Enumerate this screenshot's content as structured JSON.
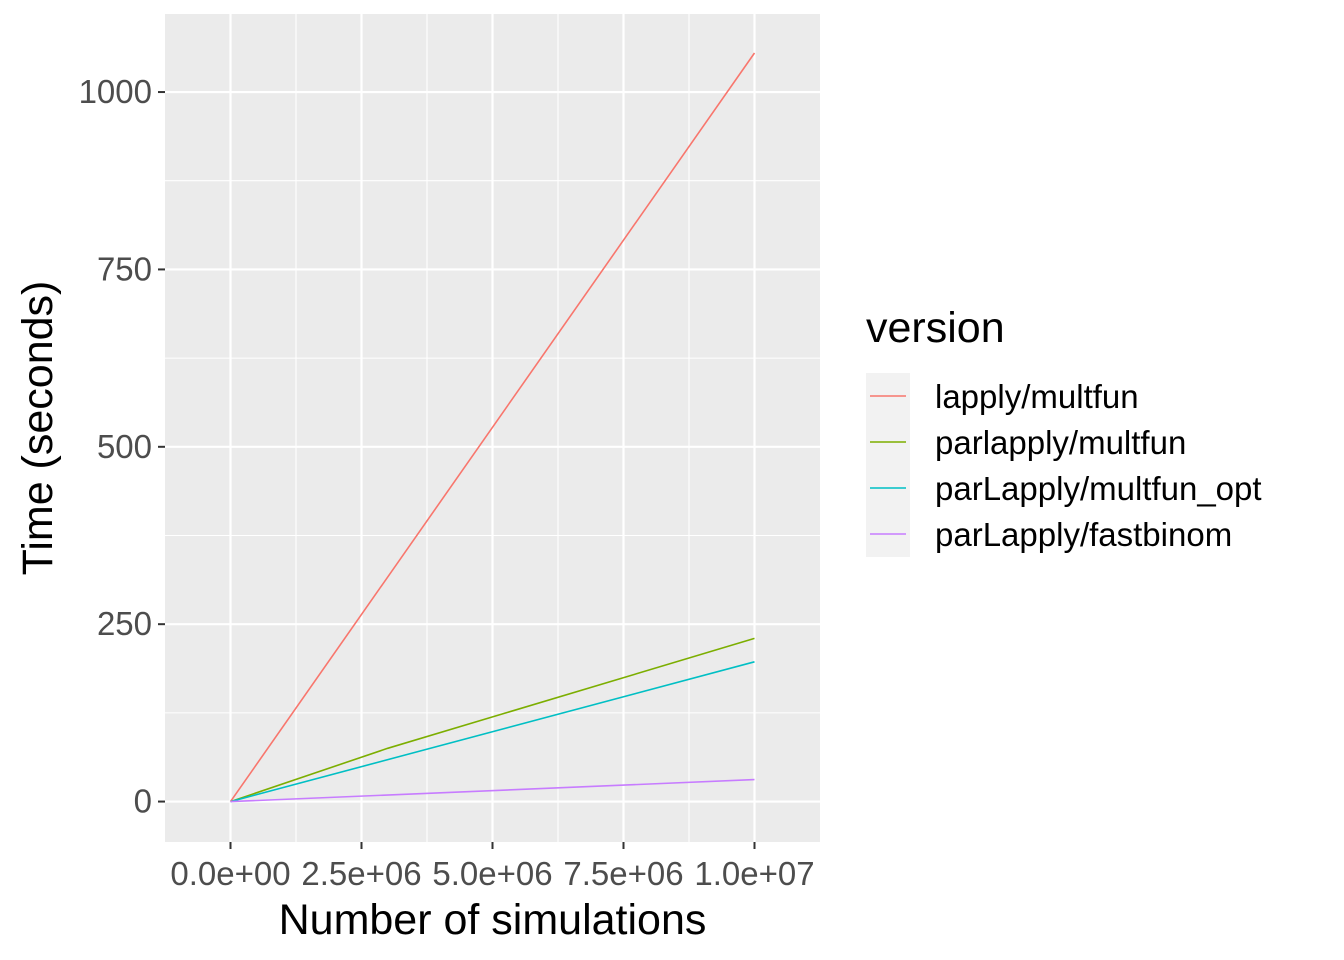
{
  "chart_data": {
    "type": "line",
    "title": "",
    "xlabel": "Number of simulations",
    "ylabel": "Time (seconds)",
    "x_ticks": [
      0,
      2500000,
      5000000,
      7500000,
      10000000
    ],
    "x_tick_labels": [
      "0.0e+00",
      "2.5e+06",
      "5.0e+06",
      "7.5e+06",
      "1.0e+07"
    ],
    "y_ticks": [
      0,
      250,
      500,
      750,
      1000
    ],
    "y_tick_labels": [
      "0",
      "250",
      "500",
      "750",
      "1000"
    ],
    "xlim": [
      -1250000,
      11250000
    ],
    "ylim": [
      -57,
      1110
    ],
    "grid": true,
    "legend": {
      "title": "version",
      "placement": "right"
    },
    "series": [
      {
        "name": "lapply/multfun",
        "color": "#F8766D",
        "x": [
          0,
          10000000
        ],
        "y": [
          0,
          1055
        ]
      },
      {
        "name": "parlapply/multfun",
        "color": "#7CAE00",
        "x": [
          0,
          3000000,
          10000000
        ],
        "y": [
          0,
          75,
          230
        ]
      },
      {
        "name": "parLapply/multfun_opt",
        "color": "#00BFC4",
        "x": [
          0,
          10000000
        ],
        "y": [
          0,
          197
        ]
      },
      {
        "name": "parLapply/fastbinom",
        "color": "#C77CFF",
        "x": [
          0,
          10000000
        ],
        "y": [
          0,
          31
        ]
      }
    ]
  }
}
